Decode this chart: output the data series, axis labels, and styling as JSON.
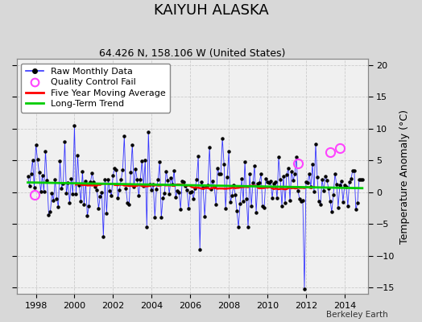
{
  "title": "KAIYUH ALASKA",
  "subtitle": "64.426 N, 158.106 W (United States)",
  "ylabel": "Temperature Anomaly (°C)",
  "watermark": "Berkeley Earth",
  "background_color": "#d8d8d8",
  "plot_bg_color": "#d8d8d8",
  "plot_inner_color": "#ffffff",
  "ylim": [
    -16,
    21
  ],
  "yticks": [
    -15,
    -10,
    -5,
    0,
    5,
    10,
    15,
    20
  ],
  "xlim": [
    1997.0,
    2015.2
  ],
  "xticks": [
    1998,
    2000,
    2002,
    2004,
    2006,
    2008,
    2010,
    2012,
    2014
  ],
  "raw_color": "#3333ff",
  "ma_color": "#ff0000",
  "trend_color": "#00cc00",
  "qc_color": "#ff44ff",
  "title_fontsize": 13,
  "subtitle_fontsize": 9,
  "ylabel_fontsize": 9,
  "legend_fontsize": 8,
  "tick_fontsize": 8,
  "seed": 42,
  "qc_points": [
    [
      1997.917,
      -0.4
    ],
    [
      2011.58,
      4.5
    ],
    [
      2013.25,
      6.3
    ],
    [
      2013.75,
      7.0
    ]
  ],
  "raw_times": [],
  "raw_values": []
}
